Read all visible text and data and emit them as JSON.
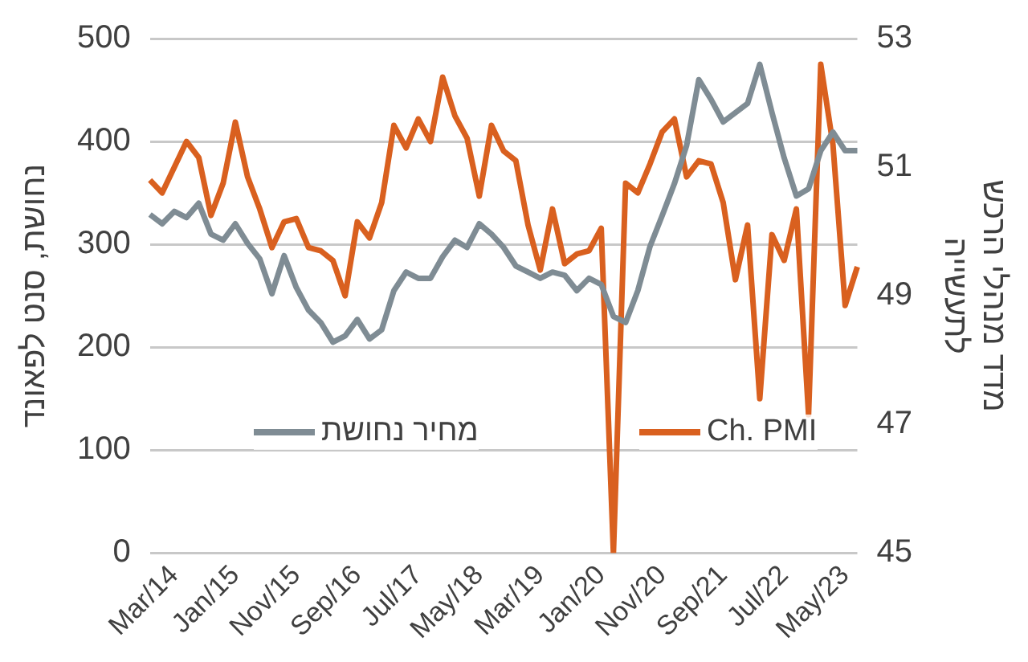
{
  "chart_data": {
    "type": "line",
    "ylabel": "נחושת, סנט לפאונד",
    "y2label": "מדד מנהלי הרכש\nלתעשייה",
    "categories": [
      null,
      null,
      "Mar/14",
      null,
      null,
      null,
      null,
      "Jan/15",
      null,
      null,
      null,
      null,
      "Nov/15",
      null,
      null,
      null,
      null,
      "Sep/16",
      null,
      null,
      null,
      null,
      "Jul/17",
      null,
      null,
      null,
      null,
      "May/18",
      null,
      null,
      null,
      null,
      "Mar/19",
      null,
      null,
      null,
      null,
      "Jan/20",
      null,
      null,
      null,
      null,
      "Nov/20",
      null,
      null,
      null,
      null,
      "Sep/21",
      null,
      null,
      null,
      null,
      "Jul/22",
      null,
      null,
      null,
      null,
      "May/23",
      null
    ],
    "series": [
      {
        "name": "מחיר נחושת",
        "color": "#7f8c94",
        "axis": "y",
        "values": [
          329,
          320,
          332,
          326,
          340,
          310,
          304,
          320,
          301,
          286,
          252,
          289,
          258,
          236,
          224,
          205,
          211,
          227,
          208,
          217,
          255,
          273,
          267,
          267,
          288,
          304,
          297,
          320,
          310,
          297,
          279,
          273,
          267,
          273,
          270,
          255,
          267,
          261,
          230,
          224,
          255,
          298,
          328,
          359,
          396,
          460,
          441,
          419,
          428,
          437,
          475,
          428,
          384,
          347,
          354,
          391,
          409,
          391,
          391
        ]
      },
      {
        "name": "Ch. PMI",
        "color": "#d9601f",
        "axis": "y2",
        "values": [
          50.8,
          50.6,
          51.0,
          51.4,
          51.15,
          50.25,
          50.75,
          51.7,
          50.85,
          50.35,
          49.75,
          50.15,
          50.2,
          49.75,
          49.7,
          49.55,
          49.0,
          50.15,
          49.9,
          50.45,
          51.65,
          51.3,
          51.75,
          51.4,
          52.4,
          51.8,
          51.45,
          50.55,
          51.65,
          51.25,
          51.1,
          50.1,
          49.4,
          50.35,
          49.5,
          49.65,
          49.7,
          50.05,
          45,
          50.75,
          50.6,
          51.05,
          51.55,
          51.75,
          50.85,
          51.1,
          51.05,
          50.45,
          49.25,
          50.1,
          47.4,
          49.95,
          49.55,
          50.35,
          47.15,
          52.6,
          51.35,
          48.85,
          49.45
        ]
      }
    ],
    "ylim": [
      0,
      500
    ],
    "yticks": [
      0,
      100,
      200,
      300,
      400,
      500
    ],
    "y2lim": [
      45,
      53
    ],
    "y2ticks": [
      45,
      47,
      49,
      51,
      53
    ],
    "grid": "y",
    "legend": "bottom",
    "marker": "none",
    "line_style": "solid"
  }
}
